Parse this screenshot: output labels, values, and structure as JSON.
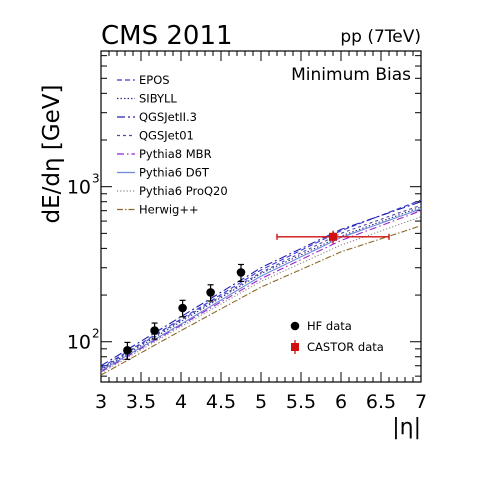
{
  "header": {
    "experiment": "CMS 2011",
    "collision": "pp (7TeV)",
    "selection": "Minimum Bias"
  },
  "chart_data": {
    "type": "line",
    "xlabel": "|η|",
    "ylabel": "dE/dη  [GeV]",
    "xlim": [
      3,
      7
    ],
    "ylim": [
      55,
      7500
    ],
    "yscale": "log",
    "x_ticks": [
      "3",
      "3.5",
      "4",
      "4.5",
      "5",
      "5.5",
      "6",
      "6.5",
      "7"
    ],
    "y_ticks": [
      {
        "value": 100,
        "label": "10",
        "exp": "2"
      },
      {
        "value": 1000,
        "label": "10",
        "exp": "3"
      }
    ],
    "models": [
      {
        "name": "EPOS",
        "color": "#3b3bd9",
        "dash": "5,3",
        "x": [
          3,
          4,
          5,
          6,
          7
        ],
        "y": [
          68,
          140,
          290,
          520,
          820
        ]
      },
      {
        "name": "SIBYLL",
        "color": "#303080",
        "dash": "1.5,2",
        "x": [
          3,
          4,
          5,
          6,
          7
        ],
        "y": [
          66,
          135,
          275,
          480,
          740
        ]
      },
      {
        "name": "QGSJetII.3",
        "color": "#2020b0",
        "dash": "8,3,2,3",
        "x": [
          3,
          4,
          5,
          6,
          7
        ],
        "y": [
          70,
          145,
          300,
          530,
          800
        ]
      },
      {
        "name": "QGSJet01",
        "color": "#4a4aa8",
        "dash": "3,3",
        "x": [
          3,
          4,
          5,
          6,
          7
        ],
        "y": [
          67,
          138,
          280,
          500,
          760
        ]
      },
      {
        "name": "Pythia8 MBR",
        "color": "#9a20d0",
        "dash": "7,3,1.5,3",
        "x": [
          3,
          4,
          5,
          6,
          7
        ],
        "y": [
          64,
          128,
          255,
          450,
          700
        ]
      },
      {
        "name": "Pythia6 D6T",
        "color": "#6a8ad8",
        "dash": "",
        "x": [
          3,
          4,
          5,
          6,
          7
        ],
        "y": [
          65,
          130,
          265,
          470,
          720
        ]
      },
      {
        "name": "Pythia6 ProQ20",
        "color": "#8a8a8a",
        "dash": "1.2,2",
        "x": [
          3,
          4,
          5,
          6,
          7
        ],
        "y": [
          63,
          125,
          245,
          420,
          640
        ]
      },
      {
        "name": "Herwig++",
        "color": "#8a6a2a",
        "dash": "6,2,1.5,2",
        "x": [
          3,
          4,
          5,
          6,
          7
        ],
        "y": [
          61,
          118,
          225,
          380,
          560
        ]
      }
    ],
    "hf_data": {
      "name": "HF data",
      "color": "#000000",
      "points": [
        {
          "x": 3.33,
          "y": 88,
          "err": 11
        },
        {
          "x": 3.67,
          "y": 118,
          "err": 14
        },
        {
          "x": 4.02,
          "y": 165,
          "err": 20
        },
        {
          "x": 4.37,
          "y": 208,
          "err": 25
        },
        {
          "x": 4.75,
          "y": 280,
          "err": 35
        }
      ]
    },
    "castor_data": {
      "name": "CASTOR data",
      "color": "#d01010",
      "points": [
        {
          "x": 5.9,
          "y": 475,
          "xerr": 0.7,
          "err": 45
        }
      ]
    },
    "legend_position": "top-left"
  }
}
